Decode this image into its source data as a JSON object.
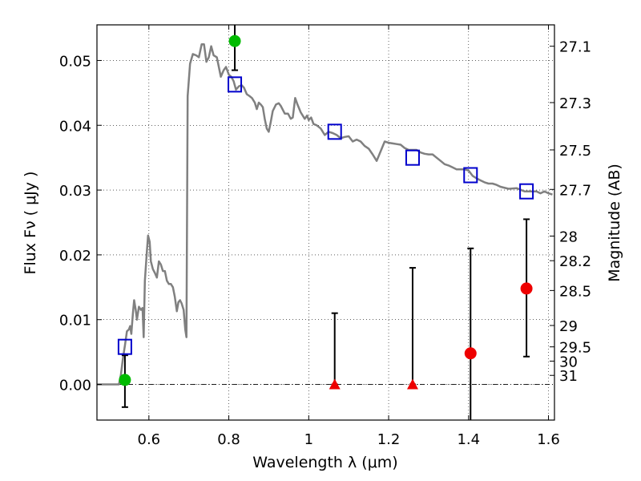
{
  "chart_data": {
    "type": "scatter",
    "xlabel": "Wavelength  λ (μm)",
    "ylabel": "Flux  Fν  ( μJy )",
    "ylabel_right": "Magnitude (AB)",
    "xlim": [
      0.47,
      1.615
    ],
    "ylim": [
      -0.0055,
      0.0555
    ],
    "grid": true,
    "x_ticks": [
      {
        "value": 0.6,
        "label": "0.6"
      },
      {
        "value": 0.8,
        "label": "0.8"
      },
      {
        "value": 1.0,
        "label": "1"
      },
      {
        "value": 1.2,
        "label": "1.2"
      },
      {
        "value": 1.4,
        "label": "1.4"
      },
      {
        "value": 1.6,
        "label": "1.6"
      }
    ],
    "y_ticks": [
      {
        "value": 0.0,
        "label": "0.00"
      },
      {
        "value": 0.01,
        "label": "0.01"
      },
      {
        "value": 0.02,
        "label": "0.02"
      },
      {
        "value": 0.03,
        "label": "0.03"
      },
      {
        "value": 0.04,
        "label": "0.04"
      },
      {
        "value": 0.05,
        "label": "0.05"
      }
    ],
    "mag_ticks": [
      {
        "label": "27.1",
        "flux": 0.0522
      },
      {
        "label": "27.3",
        "flux": 0.0435
      },
      {
        "label": "27.5",
        "flux": 0.0362
      },
      {
        "label": "27.7",
        "flux": 0.0301
      },
      {
        "label": "28",
        "flux": 0.0229
      },
      {
        "label": "28.2",
        "flux": 0.0191
      },
      {
        "label": "28.5",
        "flux": 0.0145
      },
      {
        "label": "29",
        "flux": 0.0091
      },
      {
        "label": "29.5",
        "flux": 0.0058
      },
      {
        "label": "30",
        "flux": 0.0036
      },
      {
        "label": "31",
        "flux": 0.0014
      }
    ],
    "colors": {
      "spectrum": "#808080",
      "model_marker": "#0000cc",
      "detection": "#00bb00",
      "nondetection": "#ee0000",
      "errorbar": "#000000"
    },
    "series": [
      {
        "kind": "spectrum",
        "points": [
          [
            0.47,
            0.0
          ],
          [
            0.525,
            0.0
          ],
          [
            0.53,
            0.0015
          ],
          [
            0.535,
            0.004
          ],
          [
            0.54,
            0.006
          ],
          [
            0.545,
            0.0082
          ],
          [
            0.55,
            0.0085
          ],
          [
            0.553,
            0.009
          ],
          [
            0.556,
            0.0078
          ],
          [
            0.56,
            0.011
          ],
          [
            0.563,
            0.013
          ],
          [
            0.567,
            0.0115
          ],
          [
            0.57,
            0.01
          ],
          [
            0.575,
            0.012
          ],
          [
            0.58,
            0.0115
          ],
          [
            0.584,
            0.0118
          ],
          [
            0.587,
            0.0073
          ],
          [
            0.59,
            0.016
          ],
          [
            0.595,
            0.0205
          ],
          [
            0.598,
            0.023
          ],
          [
            0.602,
            0.022
          ],
          [
            0.605,
            0.019
          ],
          [
            0.61,
            0.0178
          ],
          [
            0.615,
            0.0172
          ],
          [
            0.62,
            0.0165
          ],
          [
            0.625,
            0.019
          ],
          [
            0.63,
            0.0185
          ],
          [
            0.635,
            0.0175
          ],
          [
            0.64,
            0.0175
          ],
          [
            0.645,
            0.016
          ],
          [
            0.65,
            0.0155
          ],
          [
            0.655,
            0.0155
          ],
          [
            0.66,
            0.015
          ],
          [
            0.665,
            0.0135
          ],
          [
            0.67,
            0.0113
          ],
          [
            0.674,
            0.0127
          ],
          [
            0.678,
            0.013
          ],
          [
            0.682,
            0.0125
          ],
          [
            0.687,
            0.0115
          ],
          [
            0.691,
            0.0085
          ],
          [
            0.694,
            0.0073
          ],
          [
            0.697,
            0.0445
          ],
          [
            0.703,
            0.0495
          ],
          [
            0.71,
            0.051
          ],
          [
            0.718,
            0.0508
          ],
          [
            0.725,
            0.0505
          ],
          [
            0.732,
            0.0525
          ],
          [
            0.738,
            0.0525
          ],
          [
            0.744,
            0.0498
          ],
          [
            0.75,
            0.0505
          ],
          [
            0.756,
            0.0522
          ],
          [
            0.762,
            0.0508
          ],
          [
            0.77,
            0.0505
          ],
          [
            0.775,
            0.049
          ],
          [
            0.78,
            0.0475
          ],
          [
            0.787,
            0.0485
          ],
          [
            0.793,
            0.049
          ],
          [
            0.8,
            0.0478
          ],
          [
            0.806,
            0.0475
          ],
          [
            0.812,
            0.0468
          ],
          [
            0.818,
            0.0455
          ],
          [
            0.825,
            0.046
          ],
          [
            0.832,
            0.0462
          ],
          [
            0.838,
            0.0458
          ],
          [
            0.845,
            0.0448
          ],
          [
            0.852,
            0.0445
          ],
          [
            0.858,
            0.0442
          ],
          [
            0.865,
            0.0435
          ],
          [
            0.87,
            0.0425
          ],
          [
            0.875,
            0.0435
          ],
          [
            0.88,
            0.0432
          ],
          [
            0.885,
            0.0428
          ],
          [
            0.89,
            0.041
          ],
          [
            0.895,
            0.0395
          ],
          [
            0.9,
            0.039
          ],
          [
            0.905,
            0.0405
          ],
          [
            0.91,
            0.0422
          ],
          [
            0.918,
            0.0432
          ],
          [
            0.925,
            0.0434
          ],
          [
            0.93,
            0.043
          ],
          [
            0.94,
            0.0418
          ],
          [
            0.948,
            0.0418
          ],
          [
            0.955,
            0.041
          ],
          [
            0.96,
            0.0412
          ],
          [
            0.966,
            0.0442
          ],
          [
            0.972,
            0.0432
          ],
          [
            0.98,
            0.042
          ],
          [
            0.99,
            0.041
          ],
          [
            0.996,
            0.0415
          ],
          [
            1.0,
            0.0408
          ],
          [
            1.006,
            0.0412
          ],
          [
            1.012,
            0.0402
          ],
          [
            1.02,
            0.04
          ],
          [
            1.03,
            0.0395
          ],
          [
            1.04,
            0.0385
          ],
          [
            1.05,
            0.039
          ],
          [
            1.06,
            0.0388
          ],
          [
            1.07,
            0.0385
          ],
          [
            1.08,
            0.038
          ],
          [
            1.09,
            0.0382
          ],
          [
            1.1,
            0.0383
          ],
          [
            1.11,
            0.0375
          ],
          [
            1.12,
            0.0378
          ],
          [
            1.13,
            0.0375
          ],
          [
            1.14,
            0.0368
          ],
          [
            1.15,
            0.0364
          ],
          [
            1.16,
            0.0355
          ],
          [
            1.17,
            0.0345
          ],
          [
            1.18,
            0.036
          ],
          [
            1.19,
            0.0375
          ],
          [
            1.2,
            0.0373
          ],
          [
            1.21,
            0.0372
          ],
          [
            1.22,
            0.0371
          ],
          [
            1.23,
            0.037
          ],
          [
            1.24,
            0.0365
          ],
          [
            1.25,
            0.0362
          ],
          [
            1.26,
            0.0362
          ],
          [
            1.27,
            0.0362
          ],
          [
            1.28,
            0.0358
          ],
          [
            1.29,
            0.0356
          ],
          [
            1.3,
            0.0355
          ],
          [
            1.31,
            0.0355
          ],
          [
            1.32,
            0.035
          ],
          [
            1.33,
            0.0345
          ],
          [
            1.34,
            0.034
          ],
          [
            1.35,
            0.0338
          ],
          [
            1.36,
            0.0335
          ],
          [
            1.37,
            0.0332
          ],
          [
            1.38,
            0.0332
          ],
          [
            1.39,
            0.0332
          ],
          [
            1.4,
            0.033
          ],
          [
            1.41,
            0.0322
          ],
          [
            1.42,
            0.0318
          ],
          [
            1.43,
            0.0315
          ],
          [
            1.44,
            0.0312
          ],
          [
            1.45,
            0.031
          ],
          [
            1.46,
            0.031
          ],
          [
            1.47,
            0.0308
          ],
          [
            1.48,
            0.0305
          ],
          [
            1.5,
            0.0302
          ],
          [
            1.52,
            0.0303
          ],
          [
            1.54,
            0.0298
          ],
          [
            1.55,
            0.0298
          ],
          [
            1.57,
            0.0298
          ],
          [
            1.58,
            0.0295
          ],
          [
            1.59,
            0.0298
          ],
          [
            1.6,
            0.0295
          ],
          [
            1.61,
            0.0293
          ]
        ]
      },
      {
        "kind": "model_photometry",
        "points": [
          [
            0.54,
            0.0058
          ],
          [
            0.815,
            0.0463
          ],
          [
            1.065,
            0.039
          ],
          [
            1.26,
            0.035
          ],
          [
            1.405,
            0.0323
          ],
          [
            1.545,
            0.0298
          ]
        ]
      },
      {
        "kind": "detections",
        "points": [
          [
            0.54,
            0.0007
          ],
          [
            0.815,
            0.053
          ]
        ]
      },
      {
        "kind": "nondetections",
        "points": [
          [
            1.065,
            0.0
          ],
          [
            1.26,
            0.0
          ],
          [
            1.405,
            0.0048
          ],
          [
            1.545,
            0.0148
          ]
        ]
      },
      {
        "kind": "errorbars",
        "bars": [
          [
            0.54,
            -0.0035,
            0.0045
          ],
          [
            0.815,
            0.0485,
            0.0555
          ],
          [
            1.065,
            0.0,
            0.011
          ],
          [
            1.26,
            0.0,
            0.018
          ],
          [
            1.405,
            -0.0055,
            0.021
          ],
          [
            1.545,
            0.0043,
            0.0255
          ]
        ]
      }
    ]
  }
}
